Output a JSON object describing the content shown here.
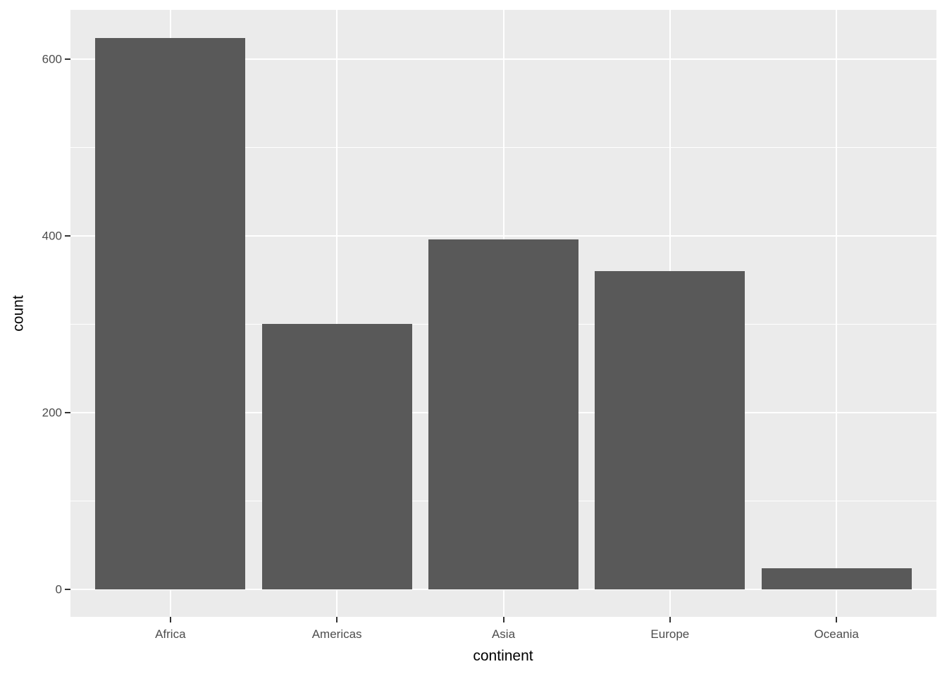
{
  "chart_data": {
    "type": "bar",
    "title": "",
    "categories": [
      "Africa",
      "Americas",
      "Asia",
      "Europe",
      "Oceania"
    ],
    "values": [
      624,
      300,
      396,
      360,
      24
    ],
    "xlabel": "continent",
    "ylabel": "count",
    "y_major_ticks": [
      0,
      200,
      400,
      600
    ],
    "y_tick_labels": [
      "0",
      "200",
      "400",
      "600"
    ],
    "y_minor_gridlines": [
      100,
      300,
      500
    ],
    "ylim": [
      -31.2,
      655.5
    ],
    "bar_rel_width": 0.9,
    "x_expand": 0.6,
    "grid": true,
    "legend_position": "none",
    "style": {
      "bar_fill": "#595959",
      "panel_bg": "#EBEBEB",
      "grid_color": "#FFFFFF",
      "tick_label_color": "#4D4D4D",
      "axis_title_color": "#000000",
      "tick_mark_color": "#333333",
      "page_bg": "#FFFFFF"
    }
  }
}
